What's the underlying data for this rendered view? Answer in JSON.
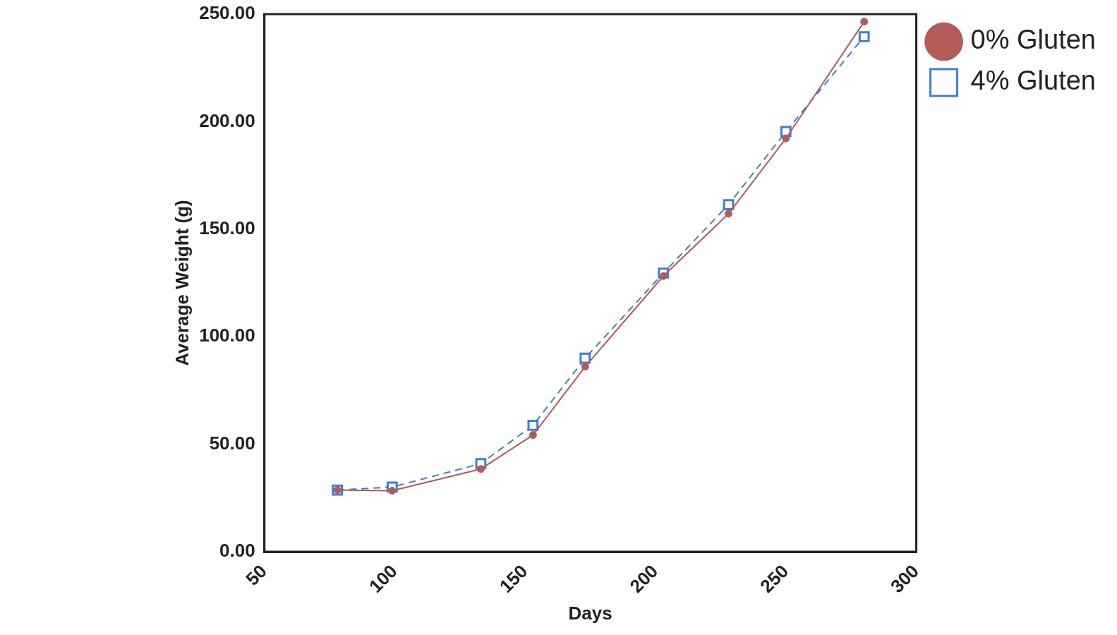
{
  "chart_data": {
    "type": "line",
    "xlabel": "Days",
    "ylabel": "Average Weight (g)",
    "x": [
      78,
      99,
      133,
      153,
      173,
      203,
      228,
      250,
      280
    ],
    "series": [
      {
        "name": "0% Gluten",
        "color": "#b35a5a",
        "marker": "circle",
        "line_style": "solid",
        "values": [
          28.7,
          28.4,
          38.5,
          54.3,
          86.1,
          128.2,
          157.2,
          192.2,
          246.5
        ]
      },
      {
        "name": "4% Gluten",
        "color": "#3b7fd9",
        "marker": "square",
        "line_style": "dashed",
        "values": [
          28.7,
          30.1,
          41,
          58.8,
          90,
          129.6,
          161.4,
          195.4,
          239.5
        ]
      }
    ],
    "xlim": [
      50,
      300
    ],
    "xticks": [
      50,
      100,
      150,
      200,
      250,
      300
    ],
    "ylim": [
      0,
      250
    ],
    "yticks": [
      {
        "value": 0,
        "label": "0.00"
      },
      {
        "value": 50,
        "label": "50.00"
      },
      {
        "value": 100,
        "label": "100.00"
      },
      {
        "value": 150,
        "label": "150.00"
      },
      {
        "value": 200,
        "label": "200.00"
      },
      {
        "value": 250,
        "label": "250.00"
      }
    ],
    "grid": false,
    "legend": "top right"
  }
}
